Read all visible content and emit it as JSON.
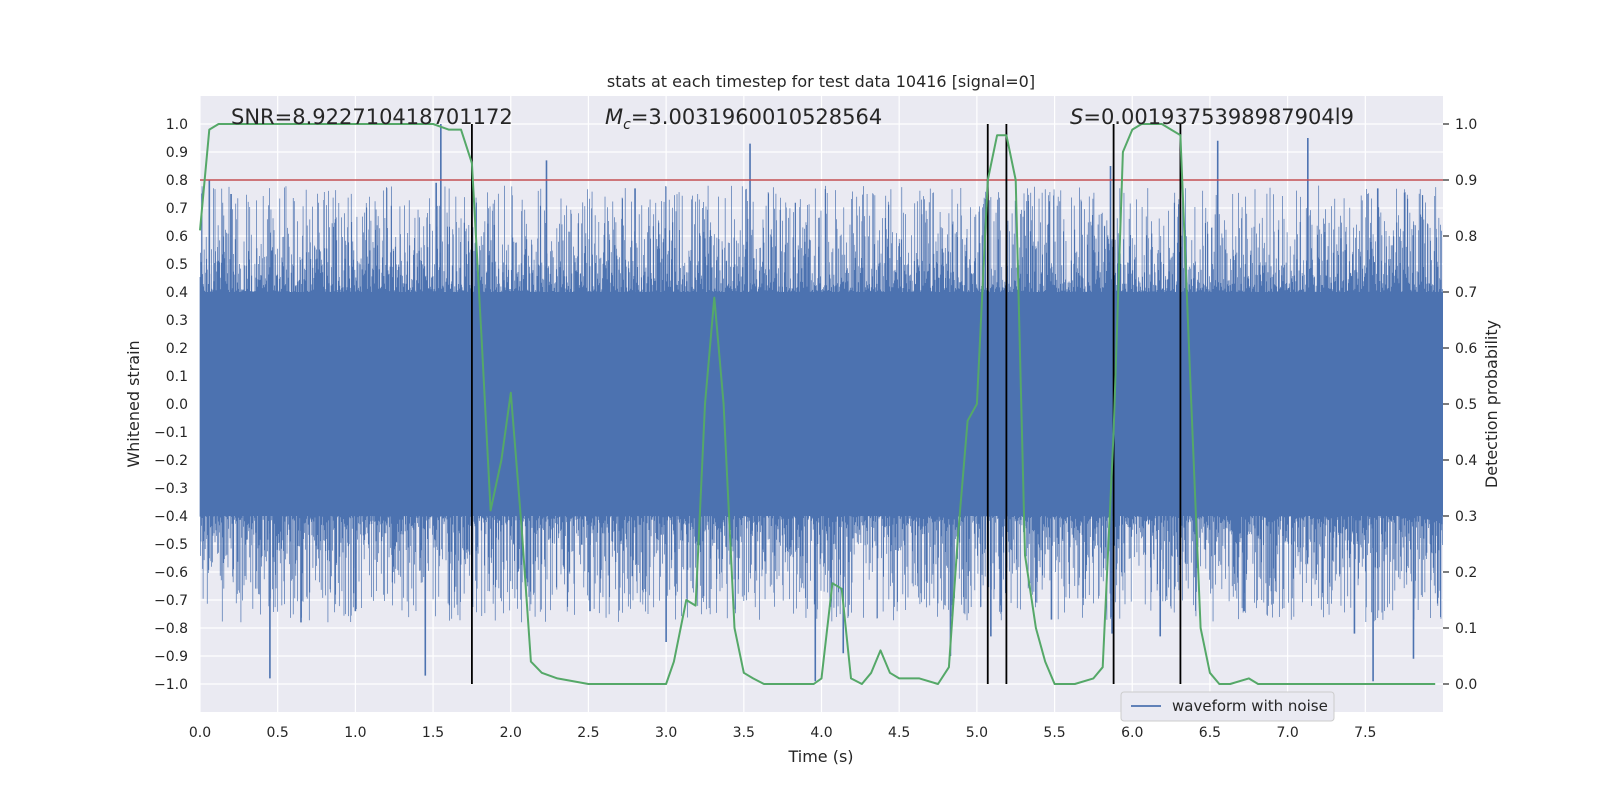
{
  "chart_data": {
    "type": "line",
    "title": "stats at each timestep for test data 10416 [signal=0]",
    "xlabel": "Time (s)",
    "ylabel": "Whitened strain",
    "ylabel_right": "Detection probability",
    "xlim": [
      0.0,
      8.0
    ],
    "ylim": [
      -1.1,
      1.1
    ],
    "ylim_right": [
      -0.05,
      1.05
    ],
    "x_ticks": [
      "0.0",
      "0.5",
      "1.0",
      "1.5",
      "2.0",
      "2.5",
      "3.0",
      "3.5",
      "4.0",
      "4.5",
      "5.0",
      "5.5",
      "6.0",
      "6.5",
      "7.0",
      "7.5"
    ],
    "y_ticks": [
      "−1.0",
      "−0.9",
      "−0.8",
      "−0.7",
      "−0.6",
      "−0.5",
      "−0.4",
      "−0.3",
      "−0.2",
      "−0.1",
      "0.0",
      "0.1",
      "0.2",
      "0.3",
      "0.4",
      "0.5",
      "0.6",
      "0.7",
      "0.8",
      "0.9",
      "1.0"
    ],
    "y_ticks_right": [
      "0.0",
      "0.1",
      "0.2",
      "0.3",
      "0.4",
      "0.5",
      "0.6",
      "0.7",
      "0.8",
      "0.9",
      "1.0"
    ],
    "annotations": {
      "snr": "SNR=8.922710418701172",
      "mc_symbol": "M",
      "mc_sub": "c",
      "mc_value": "=3.0031960010528564",
      "s_symbol": "S",
      "s_value": "=0.0019375398987904l9"
    },
    "threshold": {
      "value": 0.9,
      "axis": "right",
      "color": "#c44e52"
    },
    "vertical_lines": [
      1.75,
      5.07,
      5.19,
      5.88,
      6.31
    ],
    "legend": {
      "label": "waveform with noise",
      "placement": "lower-right"
    },
    "series": [
      {
        "name": "waveform with noise",
        "axis": "left",
        "color": "#4c72b0",
        "kind": "noise",
        "baseline_band": [
          -0.4,
          0.4
        ],
        "spikes": [
          {
            "x": 0.06,
            "y": 0.8
          },
          {
            "x": 0.45,
            "y": -0.98
          },
          {
            "x": 1.45,
            "y": -0.97
          },
          {
            "x": 1.55,
            "y": 1.0
          },
          {
            "x": 2.23,
            "y": 0.87
          },
          {
            "x": 3.54,
            "y": 0.93
          },
          {
            "x": 3.96,
            "y": -0.99
          },
          {
            "x": 4.14,
            "y": -0.89
          },
          {
            "x": 4.83,
            "y": -0.9
          },
          {
            "x": 5.09,
            "y": -0.83
          },
          {
            "x": 5.19,
            "y": 0.97
          },
          {
            "x": 5.86,
            "y": 0.85
          },
          {
            "x": 5.87,
            "y": -0.82
          },
          {
            "x": 6.18,
            "y": -0.83
          },
          {
            "x": 6.55,
            "y": 0.94
          },
          {
            "x": 7.13,
            "y": 0.95
          },
          {
            "x": 7.43,
            "y": -0.82
          },
          {
            "x": 7.55,
            "y": -0.99
          },
          {
            "x": 7.58,
            "y": 0.77
          },
          {
            "x": 7.81,
            "y": -0.91
          },
          {
            "x": 2.51,
            "y": -0.74
          },
          {
            "x": 0.65,
            "y": -0.78
          },
          {
            "x": 1.0,
            "y": -0.74
          },
          {
            "x": 3.0,
            "y": -0.85
          },
          {
            "x": 6.72,
            "y": -0.74
          },
          {
            "x": 5.48,
            "y": -0.77
          },
          {
            "x": 2.8,
            "y": 0.77
          },
          {
            "x": 1.52,
            "y": 0.79
          },
          {
            "x": 0.2,
            "y": 0.75
          }
        ]
      },
      {
        "name": "detection probability",
        "axis": "right",
        "color": "#55a868",
        "x": [
          0.0,
          0.06,
          0.12,
          0.25,
          0.5,
          0.8,
          1.0,
          1.3,
          1.5,
          1.6,
          1.68,
          1.75,
          1.81,
          1.87,
          1.94,
          2.0,
          2.07,
          2.13,
          2.2,
          2.3,
          2.5,
          2.7,
          2.85,
          3.0,
          3.05,
          3.13,
          3.19,
          3.25,
          3.31,
          3.37,
          3.44,
          3.5,
          3.56,
          3.63,
          3.75,
          3.95,
          4.0,
          4.07,
          4.13,
          4.19,
          4.26,
          4.32,
          4.38,
          4.44,
          4.5,
          4.63,
          4.75,
          4.82,
          4.88,
          4.94,
          5.0,
          5.07,
          5.13,
          5.19,
          5.25,
          5.31,
          5.38,
          5.44,
          5.5,
          5.63,
          5.75,
          5.81,
          5.88,
          5.94,
          6.0,
          6.06,
          6.13,
          6.19,
          6.25,
          6.31,
          6.38,
          6.44,
          6.5,
          6.56,
          6.63,
          6.75,
          6.81,
          6.88,
          7.0,
          7.25,
          7.5,
          7.75,
          7.95
        ],
        "y": [
          0.81,
          0.99,
          1.0,
          1.0,
          1.0,
          1.0,
          1.0,
          1.0,
          1.0,
          0.99,
          0.99,
          0.93,
          0.63,
          0.31,
          0.4,
          0.52,
          0.28,
          0.04,
          0.02,
          0.01,
          0.0,
          0.0,
          0.0,
          0.0,
          0.04,
          0.15,
          0.14,
          0.5,
          0.69,
          0.5,
          0.1,
          0.02,
          0.01,
          0.0,
          0.0,
          0.0,
          0.01,
          0.18,
          0.17,
          0.01,
          0.0,
          0.02,
          0.06,
          0.02,
          0.01,
          0.01,
          0.0,
          0.03,
          0.27,
          0.47,
          0.5,
          0.9,
          0.98,
          0.98,
          0.9,
          0.23,
          0.1,
          0.04,
          0.0,
          0.0,
          0.01,
          0.03,
          0.45,
          0.95,
          0.99,
          1.0,
          1.0,
          1.0,
          0.99,
          0.98,
          0.5,
          0.1,
          0.02,
          0.0,
          0.0,
          0.01,
          0.0,
          0.0,
          0.0,
          0.0,
          0.0,
          0.0,
          0.0
        ]
      }
    ]
  }
}
